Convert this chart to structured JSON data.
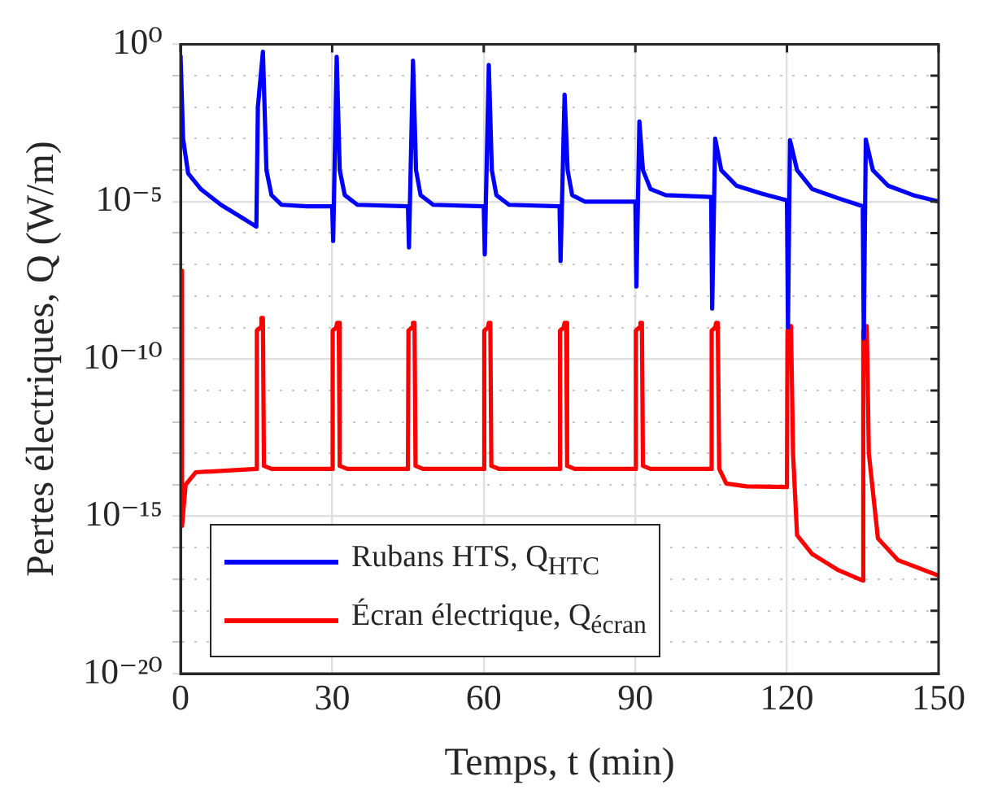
{
  "chart_data": {
    "type": "line",
    "xlabel": "Temps, t (min)",
    "ylabel": "Pertes électriques, Q (W/m)",
    "log": "y",
    "grid": true,
    "legend": "bottom left",
    "xlim": [
      0,
      150
    ],
    "xticks": [
      0,
      30,
      60,
      90,
      120,
      150
    ],
    "ylim": [
      1e-20,
      1
    ],
    "yticks": [
      {
        "value": 1,
        "label": "10⁰"
      },
      {
        "value": 0.1,
        "label": null
      },
      {
        "value": 0.01,
        "label": null
      },
      {
        "value": 0.001,
        "label": null
      },
      {
        "value": 0.0001,
        "label": null
      },
      {
        "value": 1e-05,
        "label": "10⁻⁵"
      },
      {
        "value": 1e-06,
        "label": null
      },
      {
        "value": 1e-07,
        "label": null
      },
      {
        "value": 1e-08,
        "label": null
      },
      {
        "value": 1e-09,
        "label": null
      },
      {
        "value": 1e-10,
        "label": "10⁻¹⁰"
      },
      {
        "value": 1e-11,
        "label": null
      },
      {
        "value": 1e-12,
        "label": null
      },
      {
        "value": 1e-13,
        "label": null
      },
      {
        "value": 1e-14,
        "label": null
      },
      {
        "value": 1e-15,
        "label": "10⁻¹⁵"
      },
      {
        "value": 1e-16,
        "label": null
      },
      {
        "value": 1e-17,
        "label": null
      },
      {
        "value": 1e-18,
        "label": null
      },
      {
        "value": 1e-19,
        "label": null
      },
      {
        "value": 1e-20,
        "label": "10⁻²⁰"
      }
    ],
    "series": [
      {
        "name": "Rubans HTS, Q$_{HTC}$",
        "color": "#0000ff",
        "x": [
          0,
          0.5,
          1.5,
          4,
          8,
          12,
          15,
          15.3,
          16.3,
          17,
          18,
          20,
          25,
          30,
          30.2,
          30.9,
          31.5,
          32.5,
          35,
          45,
          45.2,
          46,
          46.6,
          47.5,
          50,
          60,
          60.2,
          61,
          61.6,
          62.5,
          65,
          75,
          75.2,
          76,
          76.6,
          77.5,
          80,
          90,
          90.2,
          90.8,
          91.5,
          93,
          96,
          105,
          105.2,
          105.8,
          107,
          110,
          115,
          120,
          120.2,
          120.6,
          122,
          125,
          130,
          135,
          135.2,
          135.6,
          137,
          140,
          145,
          150
        ],
        "values": [
          0.45,
          0.001,
          7.9e-05,
          2.5e-05,
          7.9e-06,
          3.2e-06,
          1.6e-06,
          0.01,
          0.58,
          0.0001,
          1.6e-05,
          7.9e-06,
          7.1e-06,
          7.1e-06,
          5.6e-07,
          0.4,
          0.0001,
          1.6e-05,
          7.9e-06,
          7.1e-06,
          3.5e-07,
          0.3,
          0.0001,
          1.6e-05,
          7.9e-06,
          7.1e-06,
          2.1e-07,
          0.22,
          0.0001,
          1.6e-05,
          7.9e-06,
          7.1e-06,
          1.3e-07,
          0.025,
          0.0001,
          1.6e-05,
          1e-05,
          1e-05,
          2e-08,
          0.0035,
          0.0001,
          2.5e-05,
          1.6e-05,
          1.4e-05,
          4e-09,
          0.001,
          0.0001,
          3.2e-05,
          1.8e-05,
          1.1e-05,
          1e-09,
          0.00089,
          0.0001,
          2.5e-05,
          1.3e-05,
          7.1e-06,
          4.5e-10,
          0.00093,
          0.0001,
          3.2e-05,
          1.6e-05,
          1e-05
        ]
      },
      {
        "name": "Écran électrique, Q$_{écran}$",
        "color": "#ff0000",
        "x": [
          0,
          0.3,
          1,
          3,
          15,
          15.1,
          15.8,
          16,
          16.3,
          16.5,
          18,
          30,
          30.1,
          30.8,
          31,
          31.3,
          31.5,
          33,
          45,
          45.1,
          45.8,
          46,
          46.3,
          46.5,
          48,
          60,
          60.1,
          60.8,
          61,
          61.3,
          61.5,
          63,
          75,
          75.1,
          75.8,
          76,
          76.3,
          76.5,
          78,
          90,
          90.1,
          90.8,
          91,
          91.3,
          91.5,
          93,
          105,
          105.1,
          105.8,
          106,
          106.3,
          106.6,
          108,
          112,
          120,
          120.1,
          120.5,
          120.8,
          121.2,
          122,
          125,
          130,
          135,
          135.1,
          135.5,
          135.8,
          136.2,
          138,
          142,
          150
        ],
        "values": [
          6.3e-08,
          5e-16,
          1e-14,
          2.5e-14,
          3.2e-14,
          7.9e-10,
          1e-09,
          2e-09,
          2e-09,
          4e-14,
          3.2e-14,
          3.2e-14,
          7.9e-10,
          1e-09,
          1.4e-09,
          1.4e-09,
          4e-14,
          3.2e-14,
          3.2e-14,
          7.9e-10,
          1e-09,
          1.4e-09,
          1.4e-09,
          4e-14,
          3.2e-14,
          3.2e-14,
          7.9e-10,
          1e-09,
          1.4e-09,
          1.4e-09,
          4e-14,
          3.2e-14,
          3.2e-14,
          7.9e-10,
          1e-09,
          1.4e-09,
          1.4e-09,
          4e-14,
          3.2e-14,
          3.2e-14,
          7.9e-10,
          1e-09,
          1.4e-09,
          1.4e-09,
          4e-14,
          3.2e-14,
          3.2e-14,
          7.9e-10,
          1e-09,
          1.4e-09,
          1.4e-09,
          3.2e-14,
          1.1e-14,
          8.9e-15,
          8.5e-15,
          7.9e-10,
          1.1e-09,
          1.1e-09,
          1e-13,
          2.5e-16,
          6.3e-17,
          2e-17,
          9.1e-18,
          7.9e-10,
          1.1e-09,
          1.1e-09,
          1e-13,
          2e-16,
          4e-17,
          1.3e-17
        ]
      }
    ]
  }
}
